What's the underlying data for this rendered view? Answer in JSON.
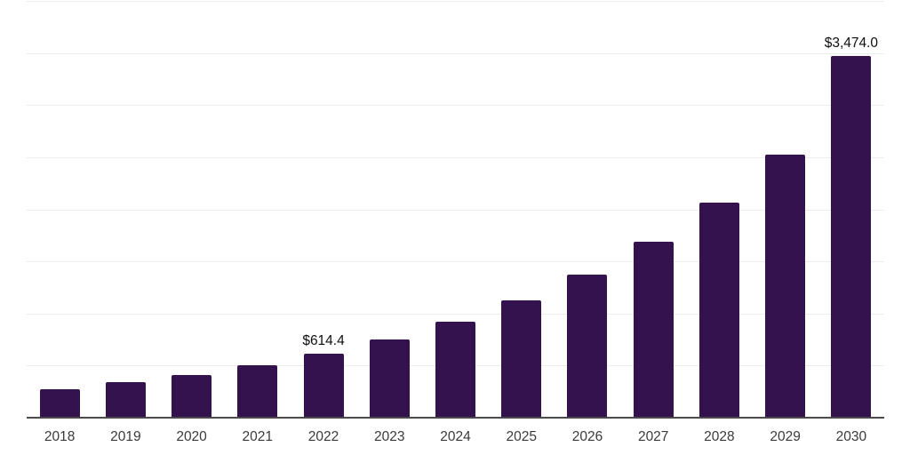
{
  "chart_data": {
    "type": "bar",
    "title": "",
    "xlabel": "",
    "ylabel": "",
    "categories": [
      "2018",
      "2019",
      "2020",
      "2021",
      "2022",
      "2023",
      "2024",
      "2025",
      "2026",
      "2027",
      "2028",
      "2029",
      "2030"
    ],
    "values": [
      275,
      340,
      412,
      505,
      614.4,
      750,
      925,
      1130,
      1370,
      1690,
      2060,
      2522,
      3474
    ],
    "data_labels": [
      "",
      "",
      "",
      "",
      "$614.4",
      "",
      "",
      "",
      "",
      "",
      "",
      "",
      "$3,474.0"
    ],
    "ylim": [
      0,
      4000
    ],
    "grid_interval": 500,
    "grid": true,
    "legend": false,
    "colors": {
      "bar": "#34124e",
      "gridline": "#ededed",
      "axis_line": "#4a4a4a",
      "tick_label": "#3a3a3a",
      "data_label": "#0f0f0f",
      "background": "#ffffff"
    }
  }
}
